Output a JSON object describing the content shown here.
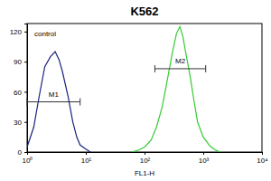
{
  "chart_data": {
    "type": "line",
    "title": "K562",
    "x_label": "FL1-H",
    "log": "x",
    "grid": false,
    "xlim": [
      1,
      10000
    ],
    "xticks": [
      {
        "value": 1,
        "label": "10⁰"
      },
      {
        "value": 10,
        "label": "10¹"
      },
      {
        "value": 100,
        "label": "10²"
      },
      {
        "value": 1000,
        "label": "10³"
      },
      {
        "value": 10000,
        "label": "10⁴"
      }
    ],
    "ylim": [
      0,
      128
    ],
    "yticks": [
      0,
      30,
      60,
      90,
      120
    ],
    "series": [
      {
        "name": "control",
        "color": "#1a237e",
        "x": [
          1,
          1.3,
          1.6,
          2,
          2.5,
          3,
          3.5,
          4,
          5,
          6,
          7,
          8,
          10,
          12
        ],
        "values": [
          5,
          25,
          55,
          85,
          95,
          100,
          92,
          80,
          55,
          30,
          15,
          7,
          3,
          0
        ]
      },
      {
        "color": "#33cc33",
        "x": [
          60,
          80,
          100,
          130,
          160,
          200,
          250,
          300,
          350,
          400,
          450,
          500,
          600,
          700,
          800,
          1000,
          1300,
          1600,
          2000
        ],
        "values": [
          0,
          2,
          5,
          12,
          25,
          45,
          75,
          100,
          118,
          125,
          115,
          100,
          75,
          50,
          30,
          15,
          6,
          2,
          0
        ]
      }
    ],
    "gates": [
      {
        "label": "M1",
        "x": [
          1,
          8
        ],
        "y": 50
      },
      {
        "label": "M2",
        "x": [
          150,
          1100
        ],
        "y": 83
      }
    ]
  }
}
